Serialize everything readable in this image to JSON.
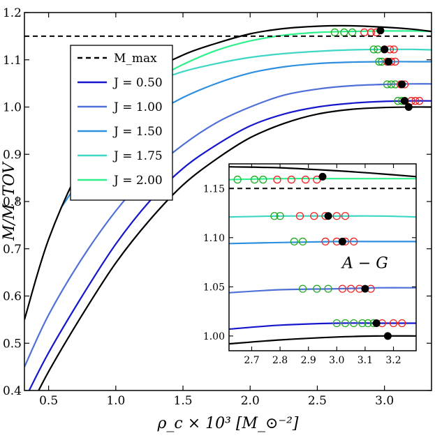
{
  "chart_data": [
    {
      "type": "line",
      "xlabel": "ρ_c × 10³ [M_⊙⁻²]",
      "ylabel": "M/M_TOV",
      "xlim": [
        0.32,
        3.35
      ],
      "ylim": [
        0.4,
        1.2
      ],
      "xticks": [
        "0.5",
        "1.0",
        "1.5",
        "2.0",
        "2.5",
        "3.0"
      ],
      "yticks": [
        "0.4",
        "0.5",
        "0.6",
        "0.7",
        "0.8",
        "0.9",
        "1.0",
        "1.1",
        "1.2"
      ],
      "grid": false,
      "legend": {
        "placement": "upper-left",
        "entries": [
          {
            "label": "M_max",
            "style": "dashed",
            "color": "#000000"
          },
          {
            "label": "J = 0.50",
            "color": "#1616cc"
          },
          {
            "label": "J = 1.00",
            "color": "#4f6fd8"
          },
          {
            "label": "J = 1.50",
            "color": "#2e8fe0"
          },
          {
            "label": "J = 1.75",
            "color": "#3ed6c4"
          },
          {
            "label": "J = 2.00",
            "color": "#2ef08c"
          }
        ]
      },
      "reference_line": {
        "label": "M_max",
        "y": 1.15,
        "style": "dashed"
      },
      "series": [
        {
          "name": "J = 0.50",
          "color": "#1616cc",
          "x": [
            0.32,
            0.5,
            0.75,
            1.0,
            1.25,
            1.5,
            1.75,
            2.0,
            2.25,
            2.5,
            2.75,
            3.0,
            3.2,
            3.35
          ],
          "y": [
            0.38,
            0.48,
            0.6,
            0.71,
            0.8,
            0.87,
            0.92,
            0.96,
            0.985,
            1.0,
            1.008,
            1.012,
            1.013,
            1.013
          ]
        },
        {
          "name": "J = 1.00",
          "color": "#4f6fd8",
          "x": [
            0.32,
            0.5,
            0.75,
            1.0,
            1.25,
            1.5,
            1.75,
            2.0,
            2.25,
            2.5,
            2.75,
            3.0,
            3.2,
            3.35
          ],
          "y": [
            0.45,
            0.56,
            0.68,
            0.78,
            0.86,
            0.92,
            0.967,
            1.0,
            1.025,
            1.038,
            1.045,
            1.048,
            1.049,
            1.049
          ]
        },
        {
          "name": "J = 1.50",
          "color": "#2e8fe0",
          "x": [
            0.6,
            0.75,
            1.0,
            1.25,
            1.5,
            1.75,
            2.0,
            2.25,
            2.5,
            2.75,
            3.0,
            3.2,
            3.35
          ],
          "y": [
            0.79,
            0.85,
            0.93,
            0.98,
            1.02,
            1.05,
            1.072,
            1.085,
            1.092,
            1.095,
            1.096,
            1.096,
            1.096
          ]
        },
        {
          "name": "J = 1.75",
          "color": "#3ed6c4",
          "x": [
            1.0,
            1.25,
            1.5,
            1.75,
            2.0,
            2.25,
            2.5,
            2.75,
            3.0,
            3.2,
            3.35
          ],
          "y": [
            1.02,
            1.05,
            1.075,
            1.092,
            1.105,
            1.113,
            1.118,
            1.121,
            1.122,
            1.122,
            1.121
          ]
        },
        {
          "name": "J = 2.00",
          "color": "#2ef08c",
          "x": [
            1.3,
            1.5,
            1.75,
            2.0,
            2.25,
            2.5,
            2.75,
            3.0,
            3.2,
            3.35
          ],
          "y": [
            1.06,
            1.09,
            1.12,
            1.14,
            1.152,
            1.158,
            1.16,
            1.161,
            1.161,
            1.16
          ]
        },
        {
          "name": "",
          "color": "#000000",
          "x": [
            0.32,
            0.5,
            0.75,
            1.0,
            1.25,
            1.5,
            1.75,
            2.0,
            2.25,
            2.5,
            2.75,
            3.0,
            3.2,
            3.35
          ],
          "y": [
            0.34,
            0.44,
            0.56,
            0.67,
            0.76,
            0.835,
            0.89,
            0.935,
            0.965,
            0.985,
            0.995,
            0.999,
            1.0,
            1.0
          ]
        },
        {
          "name": "",
          "color": "#000000",
          "x": [
            0.32,
            0.5,
            0.75,
            1.0,
            1.25,
            1.5,
            1.75,
            2.0,
            2.25,
            2.5,
            2.75,
            3.0,
            3.2,
            3.35
          ],
          "y": [
            0.55,
            0.72,
            0.88,
            0.99,
            1.07,
            1.11,
            1.135,
            1.155,
            1.166,
            1.171,
            1.172,
            1.169,
            1.165,
            1.16
          ]
        }
      ],
      "markers": {
        "green_open": [
          [
            3.1,
            1.013
          ],
          [
            3.13,
            1.013
          ],
          [
            3.15,
            1.013
          ],
          [
            3.02,
            1.048
          ],
          [
            3.05,
            1.048
          ],
          [
            3.08,
            1.048
          ],
          [
            2.96,
            1.096
          ],
          [
            2.98,
            1.096
          ],
          [
            2.92,
            1.122
          ],
          [
            2.95,
            1.122
          ],
          [
            2.63,
            1.158
          ],
          [
            2.7,
            1.158
          ],
          [
            2.76,
            1.158
          ]
        ],
        "red_open": [
          [
            3.2,
            1.013
          ],
          [
            3.23,
            1.013
          ],
          [
            3.26,
            1.013
          ],
          [
            3.12,
            1.048
          ],
          [
            3.15,
            1.048
          ],
          [
            3.02,
            1.096
          ],
          [
            3.05,
            1.096
          ],
          [
            3.08,
            1.096
          ],
          [
            3.0,
            1.122
          ],
          [
            3.04,
            1.122
          ],
          [
            3.07,
            1.122
          ],
          [
            2.85,
            1.158
          ],
          [
            2.9,
            1.158
          ],
          [
            2.94,
            1.158
          ]
        ],
        "black_filled": [
          [
            3.18,
            1.0
          ],
          [
            3.15,
            1.013
          ],
          [
            3.13,
            1.048
          ],
          [
            3.03,
            1.096
          ],
          [
            3.0,
            1.122
          ],
          [
            2.97,
            1.162
          ]
        ]
      }
    },
    {
      "type": "line",
      "role": "inset",
      "xlim": [
        2.62,
        3.28
      ],
      "ylim": [
        0.985,
        1.175
      ],
      "xticks": [
        "2.7",
        "2.8",
        "2.9",
        "3.0",
        "3.1",
        "3.2"
      ],
      "yticks": [
        "1.00",
        "1.05",
        "1.10",
        "1.15"
      ],
      "annotation": "A − G",
      "reference_line": {
        "y": 1.15,
        "style": "dashed"
      },
      "series": [
        {
          "color": "#000000",
          "x": [
            2.62,
            2.8,
            3.0,
            3.15,
            3.28
          ],
          "y": [
            0.992,
            0.996,
            0.999,
            1.0,
            1.0
          ]
        },
        {
          "color": "#1616cc",
          "x": [
            2.62,
            2.8,
            3.0,
            3.15,
            3.28
          ],
          "y": [
            1.007,
            1.011,
            1.013,
            1.013,
            1.013
          ]
        },
        {
          "color": "#4f6fd8",
          "x": [
            2.62,
            2.8,
            3.0,
            3.15,
            3.28
          ],
          "y": [
            1.044,
            1.047,
            1.048,
            1.049,
            1.049
          ]
        },
        {
          "color": "#2e8fe0",
          "x": [
            2.62,
            2.8,
            3.0,
            3.15,
            3.28
          ],
          "y": [
            1.094,
            1.095,
            1.096,
            1.096,
            1.096
          ]
        },
        {
          "color": "#3ed6c4",
          "x": [
            2.62,
            2.8,
            3.0,
            3.15,
            3.28
          ],
          "y": [
            1.121,
            1.122,
            1.122,
            1.122,
            1.121
          ]
        },
        {
          "color": "#2ef08c",
          "x": [
            2.62,
            2.8,
            3.0,
            3.15,
            3.28
          ],
          "y": [
            1.159,
            1.16,
            1.16,
            1.16,
            1.16
          ]
        },
        {
          "color": "#000000",
          "x": [
            2.62,
            2.8,
            3.0,
            3.15,
            3.28
          ],
          "y": [
            1.172,
            1.171,
            1.168,
            1.165,
            1.162
          ]
        }
      ],
      "markers": {
        "green_open": [
          [
            3.0,
            1.013
          ],
          [
            3.03,
            1.013
          ],
          [
            3.06,
            1.013
          ],
          [
            3.09,
            1.013
          ],
          [
            3.11,
            1.013
          ],
          [
            3.13,
            1.013
          ],
          [
            2.88,
            1.048
          ],
          [
            2.93,
            1.048
          ],
          [
            2.97,
            1.048
          ],
          [
            2.85,
            1.096
          ],
          [
            2.88,
            1.096
          ],
          [
            2.78,
            1.122
          ],
          [
            2.8,
            1.122
          ],
          [
            2.65,
            1.159
          ],
          [
            2.71,
            1.159
          ],
          [
            2.74,
            1.159
          ]
        ],
        "red_open": [
          [
            3.16,
            1.013
          ],
          [
            3.2,
            1.013
          ],
          [
            3.23,
            1.013
          ],
          [
            3.02,
            1.048
          ],
          [
            3.05,
            1.048
          ],
          [
            3.08,
            1.048
          ],
          [
            3.12,
            1.048
          ],
          [
            2.96,
            1.096
          ],
          [
            3.0,
            1.096
          ],
          [
            3.03,
            1.096
          ],
          [
            3.06,
            1.096
          ],
          [
            2.87,
            1.122
          ],
          [
            2.92,
            1.122
          ],
          [
            2.96,
            1.122
          ],
          [
            3.0,
            1.122
          ],
          [
            3.03,
            1.122
          ],
          [
            2.79,
            1.159
          ],
          [
            2.84,
            1.159
          ],
          [
            2.89,
            1.159
          ],
          [
            2.93,
            1.159
          ]
        ],
        "black_filled": [
          [
            3.18,
            1.0
          ],
          [
            3.14,
            1.013
          ],
          [
            3.1,
            1.048
          ],
          [
            3.02,
            1.096
          ],
          [
            2.97,
            1.122
          ],
          [
            2.95,
            1.162
          ]
        ]
      }
    }
  ]
}
